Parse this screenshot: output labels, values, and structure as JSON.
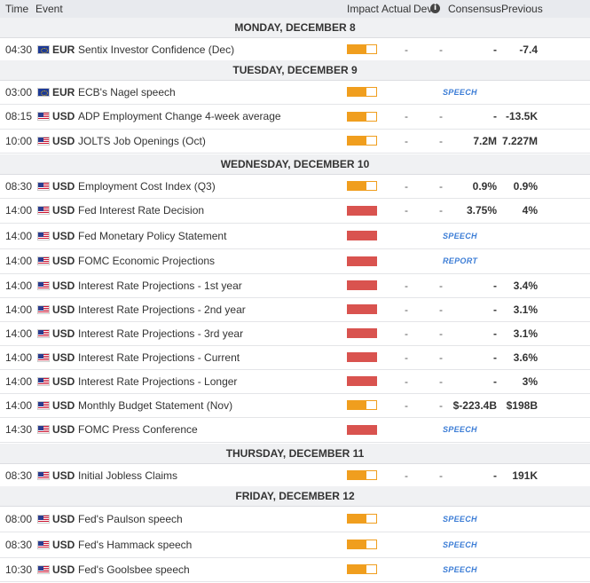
{
  "header": {
    "time": "Time",
    "event": "Event",
    "impact": "Impact",
    "actual": "Actual",
    "dev": "Dev",
    "consensus": "Consensus",
    "previous": "Previous",
    "info_icon": "info-icon"
  },
  "colors": {
    "medium": "#f09e1e",
    "high": "#d9534f",
    "tag": "#3c7dd6"
  },
  "days": [
    {
      "title": "MONDAY, DECEMBER 8",
      "events": [
        {
          "time": "04:30",
          "flag": "eu",
          "currency": "EUR",
          "name": "Sentix Investor Confidence (Dec)",
          "impact": "medium",
          "actual": "-",
          "dev": "-",
          "consensus": "-",
          "previous": "-7.4"
        }
      ]
    },
    {
      "title": "TUESDAY, DECEMBER 9",
      "events": [
        {
          "time": "03:00",
          "flag": "eu",
          "currency": "EUR",
          "name": "ECB's Nagel speech",
          "impact": "medium",
          "tag": "SPEECH"
        },
        {
          "time": "08:15",
          "flag": "us",
          "currency": "USD",
          "name": "ADP Employment Change 4-week average",
          "impact": "medium",
          "actual": "-",
          "dev": "-",
          "consensus": "-",
          "previous": "-13.5K"
        },
        {
          "time": "10:00",
          "flag": "us",
          "currency": "USD",
          "name": "JOLTS Job Openings (Oct)",
          "impact": "medium",
          "actual": "-",
          "dev": "-",
          "consensus": "7.2M",
          "previous": "7.227M"
        }
      ]
    },
    {
      "title": "WEDNESDAY, DECEMBER 10",
      "events": [
        {
          "time": "08:30",
          "flag": "us",
          "currency": "USD",
          "name": "Employment Cost Index (Q3)",
          "impact": "medium",
          "actual": "-",
          "dev": "-",
          "consensus": "0.9%",
          "previous": "0.9%"
        },
        {
          "time": "14:00",
          "flag": "us",
          "currency": "USD",
          "name": "Fed Interest Rate Decision",
          "impact": "high",
          "actual": "-",
          "dev": "-",
          "consensus": "3.75%",
          "previous": "4%"
        },
        {
          "time": "14:00",
          "flag": "us",
          "currency": "USD",
          "name": "Fed Monetary Policy Statement",
          "impact": "high",
          "tag": "SPEECH"
        },
        {
          "time": "14:00",
          "flag": "us",
          "currency": "USD",
          "name": "FOMC Economic Projections",
          "impact": "high",
          "tag": "REPORT"
        },
        {
          "time": "14:00",
          "flag": "us",
          "currency": "USD",
          "name": "Interest Rate Projections - 1st year",
          "impact": "high",
          "actual": "-",
          "dev": "-",
          "consensus": "-",
          "previous": "3.4%"
        },
        {
          "time": "14:00",
          "flag": "us",
          "currency": "USD",
          "name": "Interest Rate Projections - 2nd year",
          "impact": "high",
          "actual": "-",
          "dev": "-",
          "consensus": "-",
          "previous": "3.1%"
        },
        {
          "time": "14:00",
          "flag": "us",
          "currency": "USD",
          "name": "Interest Rate Projections - 3rd year",
          "impact": "high",
          "actual": "-",
          "dev": "-",
          "consensus": "-",
          "previous": "3.1%"
        },
        {
          "time": "14:00",
          "flag": "us",
          "currency": "USD",
          "name": "Interest Rate Projections - Current",
          "impact": "high",
          "actual": "-",
          "dev": "-",
          "consensus": "-",
          "previous": "3.6%"
        },
        {
          "time": "14:00",
          "flag": "us",
          "currency": "USD",
          "name": "Interest Rate Projections - Longer",
          "impact": "high",
          "actual": "-",
          "dev": "-",
          "consensus": "-",
          "previous": "3%"
        },
        {
          "time": "14:00",
          "flag": "us",
          "currency": "USD",
          "name": "Monthly Budget Statement (Nov)",
          "impact": "medium",
          "actual": "-",
          "dev": "-",
          "consensus": "$-223.4B",
          "previous": "$198B"
        },
        {
          "time": "14:30",
          "flag": "us",
          "currency": "USD",
          "name": "FOMC Press Conference",
          "impact": "high",
          "tag": "SPEECH"
        }
      ]
    },
    {
      "title": "THURSDAY, DECEMBER 11",
      "events": [
        {
          "time": "08:30",
          "flag": "us",
          "currency": "USD",
          "name": "Initial Jobless Claims",
          "impact": "medium",
          "actual": "-",
          "dev": "-",
          "consensus": "-",
          "previous": "191K"
        }
      ]
    },
    {
      "title": "FRIDAY, DECEMBER 12",
      "events": [
        {
          "time": "08:00",
          "flag": "us",
          "currency": "USD",
          "name": "Fed's Paulson speech",
          "impact": "medium",
          "tag": "SPEECH"
        },
        {
          "time": "08:30",
          "flag": "us",
          "currency": "USD",
          "name": "Fed's Hammack speech",
          "impact": "medium",
          "tag": "SPEECH"
        },
        {
          "time": "10:30",
          "flag": "us",
          "currency": "USD",
          "name": "Fed's Goolsbee speech",
          "impact": "medium",
          "tag": "SPEECH"
        }
      ]
    }
  ]
}
